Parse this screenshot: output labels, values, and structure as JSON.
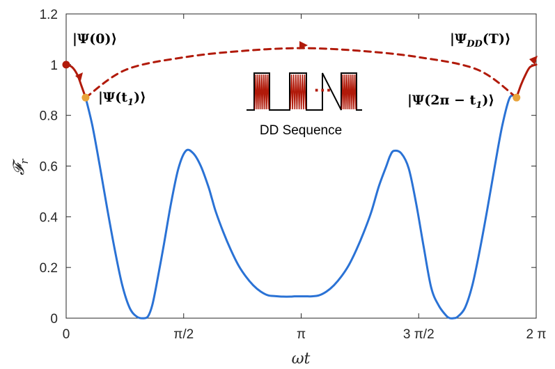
{
  "chart_data": {
    "type": "line",
    "title": "",
    "xlabel": "ωt",
    "ylabel": "𝓕_r",
    "xlim": [
      0,
      6.2832
    ],
    "ylim": [
      0,
      1.2
    ],
    "xticks": [
      {
        "value": 0,
        "label": "0"
      },
      {
        "value": 1.5708,
        "label": "π/2"
      },
      {
        "value": 3.1416,
        "label": "π"
      },
      {
        "value": 4.7124,
        "label": "3 π/2"
      },
      {
        "value": 6.2832,
        "label": "2 π"
      }
    ],
    "yticks": [
      {
        "value": 0,
        "label": "0"
      },
      {
        "value": 0.2,
        "label": "0.2"
      },
      {
        "value": 0.4,
        "label": "0.4"
      },
      {
        "value": 0.6,
        "label": "0.6"
      },
      {
        "value": 0.8,
        "label": "0.8"
      },
      {
        "value": 1.0,
        "label": "1"
      },
      {
        "value": 1.2,
        "label": "1.2"
      }
    ],
    "grid": false,
    "series": [
      {
        "color": "#2a72d5",
        "style": "solid",
        "x": [
          0.26,
          0.35,
          0.45,
          0.55,
          0.65,
          0.75,
          0.85,
          0.95,
          1.05,
          1.1,
          1.15,
          1.2,
          1.3,
          1.4,
          1.5,
          1.6,
          1.7,
          1.8,
          1.9,
          1.95,
          2.0,
          2.1,
          2.2,
          2.3,
          2.4,
          2.5,
          2.6,
          2.7,
          2.8,
          2.9,
          3.0,
          3.05,
          3.1416,
          3.23,
          3.28,
          3.38,
          3.48,
          3.58,
          3.68,
          3.78,
          3.88,
          3.98,
          4.08,
          4.18,
          4.28,
          4.33,
          4.38,
          4.48,
          4.58,
          4.68,
          4.78,
          4.88,
          4.98,
          5.08,
          5.13,
          5.18,
          5.23,
          5.33,
          5.43,
          5.53,
          5.63,
          5.73,
          5.83,
          5.93,
          6.02
        ],
        "y": [
          0.87,
          0.76,
          0.6,
          0.43,
          0.27,
          0.13,
          0.04,
          0.005,
          0.0,
          0.01,
          0.05,
          0.12,
          0.28,
          0.45,
          0.59,
          0.66,
          0.65,
          0.6,
          0.52,
          0.47,
          0.42,
          0.34,
          0.27,
          0.21,
          0.165,
          0.13,
          0.105,
          0.09,
          0.087,
          0.085,
          0.085,
          0.086,
          0.086,
          0.086,
          0.086,
          0.09,
          0.105,
          0.13,
          0.165,
          0.21,
          0.27,
          0.34,
          0.42,
          0.52,
          0.6,
          0.64,
          0.66,
          0.65,
          0.59,
          0.45,
          0.28,
          0.12,
          0.05,
          0.01,
          0.0,
          0.0,
          0.005,
          0.04,
          0.13,
          0.27,
          0.43,
          0.6,
          0.76,
          0.87,
          0.87
        ]
      },
      {
        "color": "#b11a0a",
        "style": "dashed",
        "x": [
          0.26,
          0.8,
          1.6,
          2.4,
          3.1416,
          3.9,
          4.7,
          5.5,
          6.02
        ],
        "y": [
          0.87,
          0.98,
          1.03,
          1.055,
          1.065,
          1.055,
          1.03,
          0.98,
          0.87
        ]
      },
      {
        "color": "#b11a0a",
        "style": "solid",
        "x": [
          0.0,
          0.08,
          0.15,
          0.2,
          0.26
        ],
        "y": [
          1.0,
          0.99,
          0.96,
          0.92,
          0.87
        ]
      },
      {
        "color": "#b11a0a",
        "style": "solid",
        "x": [
          6.02,
          6.08,
          6.14,
          6.2,
          6.2832
        ],
        "y": [
          0.87,
          0.92,
          0.96,
          0.99,
          1.0
        ]
      }
    ],
    "points": [
      {
        "x": 0.0,
        "y": 1.0,
        "color": "#b11a0a"
      },
      {
        "x": 0.26,
        "y": 0.87,
        "color": "#e8a33a"
      },
      {
        "x": 6.02,
        "y": 0.87,
        "color": "#e8a33a"
      }
    ],
    "annotations": {
      "psi0": {
        "main": "|Ψ(0)⟩"
      },
      "psit1": {
        "main": "|Ψ(t",
        "sub": "1",
        "tail": ")⟩"
      },
      "psi2pi": {
        "main": "|Ψ(2π − t",
        "sub": "1",
        "tail": ")⟩"
      },
      "psidd": {
        "main": "|Ψ",
        "sub": "DD",
        "tail": "(T)⟩"
      },
      "dd_sequence": "DD Sequence",
      "dd_dots": "···"
    }
  }
}
